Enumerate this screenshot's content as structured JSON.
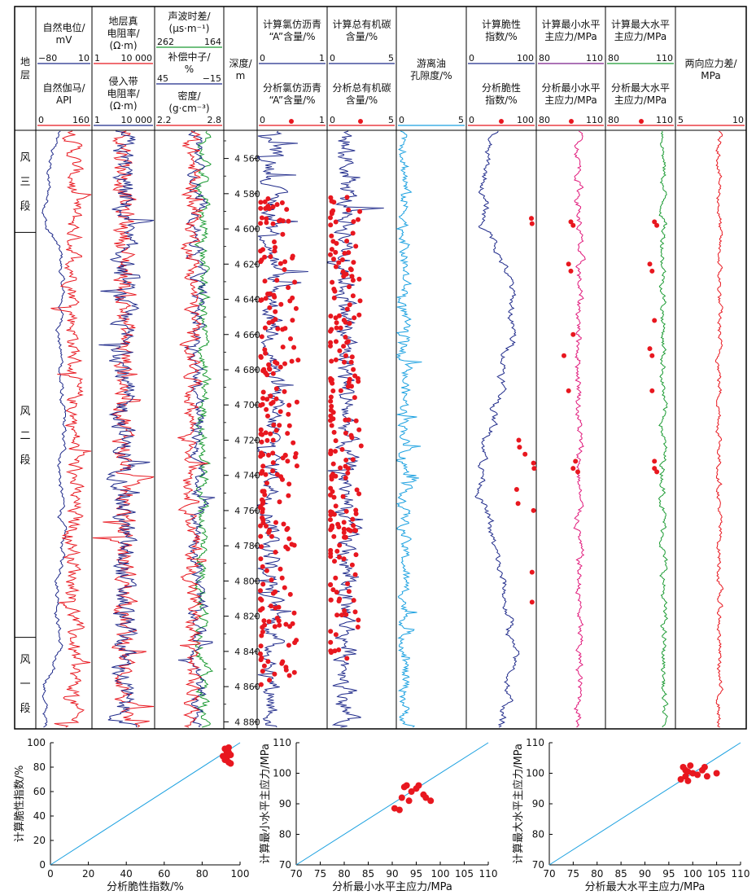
{
  "colors": {
    "blue": "#1f2a8a",
    "red": "#e8171f",
    "green": "#1c9b33",
    "pink": "#e0177a",
    "cyan": "#1aa0e0",
    "purple": "#7a1f8a",
    "black": "#111111"
  },
  "headers": {
    "layer_col": [
      "地",
      "层"
    ],
    "depth": [
      "深度/",
      "m"
    ],
    "sp": [
      "自然电位/",
      "mV"
    ],
    "sp_range": [
      "−80",
      "10"
    ],
    "gr": [
      "自然伽马/",
      "API"
    ],
    "gr_range": [
      "0",
      "160"
    ],
    "rt": [
      "地层真",
      "电阻率/",
      "(Ω·m)"
    ],
    "rt_range": [
      "1",
      "10 000"
    ],
    "rxo": [
      "侵入带",
      "电阻率/",
      "(Ω·m)"
    ],
    "rxo_range": [
      "1",
      "10 000"
    ],
    "ac": [
      "声波时差/",
      "(μs·m⁻¹)"
    ],
    "ac_range": [
      "262",
      "164"
    ],
    "cnl": [
      "补偿中子/",
      "%"
    ],
    "cnl_range": [
      "45",
      "−15"
    ],
    "den": [
      "密度/",
      "(g·cm⁻³)"
    ],
    "den_range": [
      "2.2",
      "2.8"
    ],
    "calc_a": [
      "计算氯仿沥青",
      "“A”含量/%"
    ],
    "calc_a_range": [
      "0",
      "1"
    ],
    "meas_a": [
      "分析氯仿沥青",
      "“A”含量/%"
    ],
    "meas_a_range": [
      "0",
      "1"
    ],
    "calc_toc": [
      "计算总有机碳",
      "含量/%"
    ],
    "calc_toc_range": [
      "0",
      "5"
    ],
    "meas_toc": [
      "分析总有机碳",
      "含量/%"
    ],
    "meas_toc_range": [
      "0",
      "5"
    ],
    "phi": [
      "游离油",
      "孔隙度/%"
    ],
    "phi_range": [
      "0",
      "5"
    ],
    "calc_bi": [
      "计算脆性",
      "指数/%"
    ],
    "calc_bi_range": [
      "0",
      "100"
    ],
    "meas_bi": [
      "分析脆性",
      "指数/%"
    ],
    "meas_bi_range": [
      "0",
      "100"
    ],
    "calc_shmin": [
      "计算最小水平",
      "主应力/MPa"
    ],
    "calc_shmin_range": [
      "80",
      "110"
    ],
    "meas_shmin": [
      "分析最小水平",
      "主应力/MPa"
    ],
    "meas_shmin_range": [
      "80",
      "110"
    ],
    "calc_shmax": [
      "计算最大水平",
      "主应力/MPa"
    ],
    "calc_shmax_range": [
      "80",
      "110"
    ],
    "meas_shmax": [
      "分析最大水平",
      "主应力/MPa"
    ],
    "meas_shmax_range": [
      "80",
      "110"
    ],
    "diff": [
      "两向应力差/",
      "MPa"
    ],
    "diff_range": [
      "5",
      "10"
    ]
  },
  "formations": [
    {
      "chars": [
        "风",
        "三",
        "段"
      ],
      "top": 4540,
      "bottom": 4602
    },
    {
      "chars": [
        "风",
        "二",
        "段"
      ],
      "top": 4602,
      "bottom": 4832
    },
    {
      "chars": [
        "风",
        "一",
        "段"
      ],
      "top": 4832,
      "bottom": 4884
    }
  ],
  "chart_data": [
    {
      "type": "line",
      "subtype": "well-log",
      "depth_axis": {
        "range": [
          4544,
          4884
        ],
        "ticks": [
          4560,
          4580,
          4600,
          4620,
          4640,
          4660,
          4680,
          4700,
          4720,
          4740,
          4760,
          4780,
          4800,
          4820,
          4840,
          4860,
          4880
        ],
        "tick_labels": [
          "4 560",
          "4 580",
          "4 600",
          "4 620",
          "4 640",
          "4 660",
          "4 680",
          "4 700",
          "4 720",
          "4 740",
          "4 760",
          "4 780",
          "4 800",
          "4 820",
          "4 840",
          "4 860",
          "4 880"
        ]
      },
      "brittleness_samples": {
        "depth": [
          4594,
          4597,
          4720,
          4724,
          4728,
          4733,
          4736,
          4748,
          4756,
          4760,
          4795,
          4812
        ],
        "value": [
          93,
          94,
          75,
          76,
          84,
          96,
          97,
          72,
          74,
          96,
          94,
          94
        ]
      },
      "shmin_samples": {
        "depth": [
          4596,
          4598,
          4620,
          4624,
          4660,
          4672,
          4692,
          4732,
          4736,
          4738
        ],
        "value": [
          95,
          96,
          94,
          95,
          96,
          92,
          94,
          97,
          96,
          98
        ]
      },
      "shmax_samples": {
        "depth": [
          4596,
          4598,
          4620,
          4624,
          4652,
          4668,
          4672,
          4692,
          4732,
          4736,
          4738
        ],
        "value": [
          101,
          102,
          99,
          100,
          101,
          99,
          100,
          100,
          101,
          101,
          102
        ]
      }
    },
    {
      "type": "scatter",
      "xlabel": "分析脆性指数/%",
      "ylabel": "计算脆性指数/%",
      "xlim": [
        0,
        100
      ],
      "ylim": [
        0,
        100
      ],
      "xticks": [
        0,
        20,
        40,
        60,
        80,
        100
      ],
      "yticks": [
        0,
        20,
        40,
        60,
        80,
        100
      ],
      "x": [
        92,
        93,
        94,
        95,
        93,
        92,
        94,
        95,
        93,
        91,
        94
      ],
      "y": [
        95,
        93,
        92,
        90,
        88,
        86,
        84,
        83,
        91,
        89,
        96
      ],
      "reference_line": "y=x"
    },
    {
      "type": "scatter",
      "xlabel": "分析最小水平主应力/MPa",
      "ylabel": "计算最小水平主应力/MPa",
      "xlim": [
        70,
        110
      ],
      "ylim": [
        70,
        110
      ],
      "xticks": [
        70,
        75,
        80,
        85,
        90,
        95,
        100,
        105,
        110
      ],
      "yticks": [
        70,
        80,
        90,
        100,
        110
      ],
      "x": [
        90.5,
        91.5,
        92,
        92.5,
        93,
        93.5,
        94,
        95,
        95.5,
        96.5,
        97,
        98
      ],
      "y": [
        88.5,
        88,
        92,
        95.5,
        96,
        91,
        94,
        95,
        96,
        93,
        92,
        91
      ],
      "reference_line": "y=x"
    },
    {
      "type": "scatter",
      "xlabel": "分析最大水平主应力/MPa",
      "ylabel": "计算最大水平主应力/MPa",
      "xlim": [
        70,
        110
      ],
      "ylim": [
        70,
        110
      ],
      "xticks": [
        70,
        75,
        80,
        85,
        90,
        95,
        100,
        105,
        110
      ],
      "yticks": [
        70,
        80,
        90,
        100,
        110
      ],
      "x": [
        97.5,
        98,
        98.5,
        99,
        99.5,
        100,
        101,
        102,
        102.5,
        103,
        105,
        99,
        98.5
      ],
      "y": [
        98,
        102,
        101,
        97.5,
        102.5,
        100,
        99.5,
        101,
        102,
        99,
        100,
        100.5,
        99
      ],
      "reference_line": "y=x"
    }
  ]
}
